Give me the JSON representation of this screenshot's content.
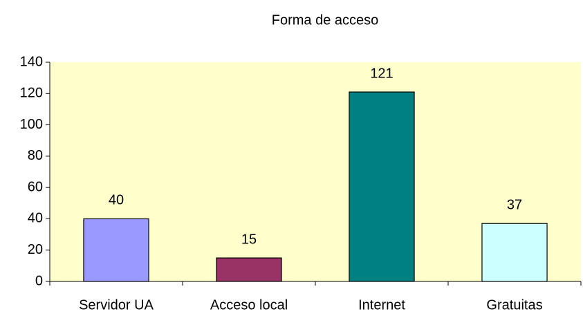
{
  "chart_data": {
    "type": "bar",
    "title": "Forma de acceso",
    "categories": [
      "Servidor UA",
      "Acceso local",
      "Internet",
      "Gratuitas"
    ],
    "values": [
      40,
      15,
      121,
      37
    ],
    "colors": [
      "#9999ff",
      "#993366",
      "#008080",
      "#ccffff"
    ],
    "ylim": [
      0,
      140
    ],
    "yticks": [
      0,
      20,
      40,
      60,
      80,
      100,
      120,
      140
    ],
    "grid": false
  }
}
